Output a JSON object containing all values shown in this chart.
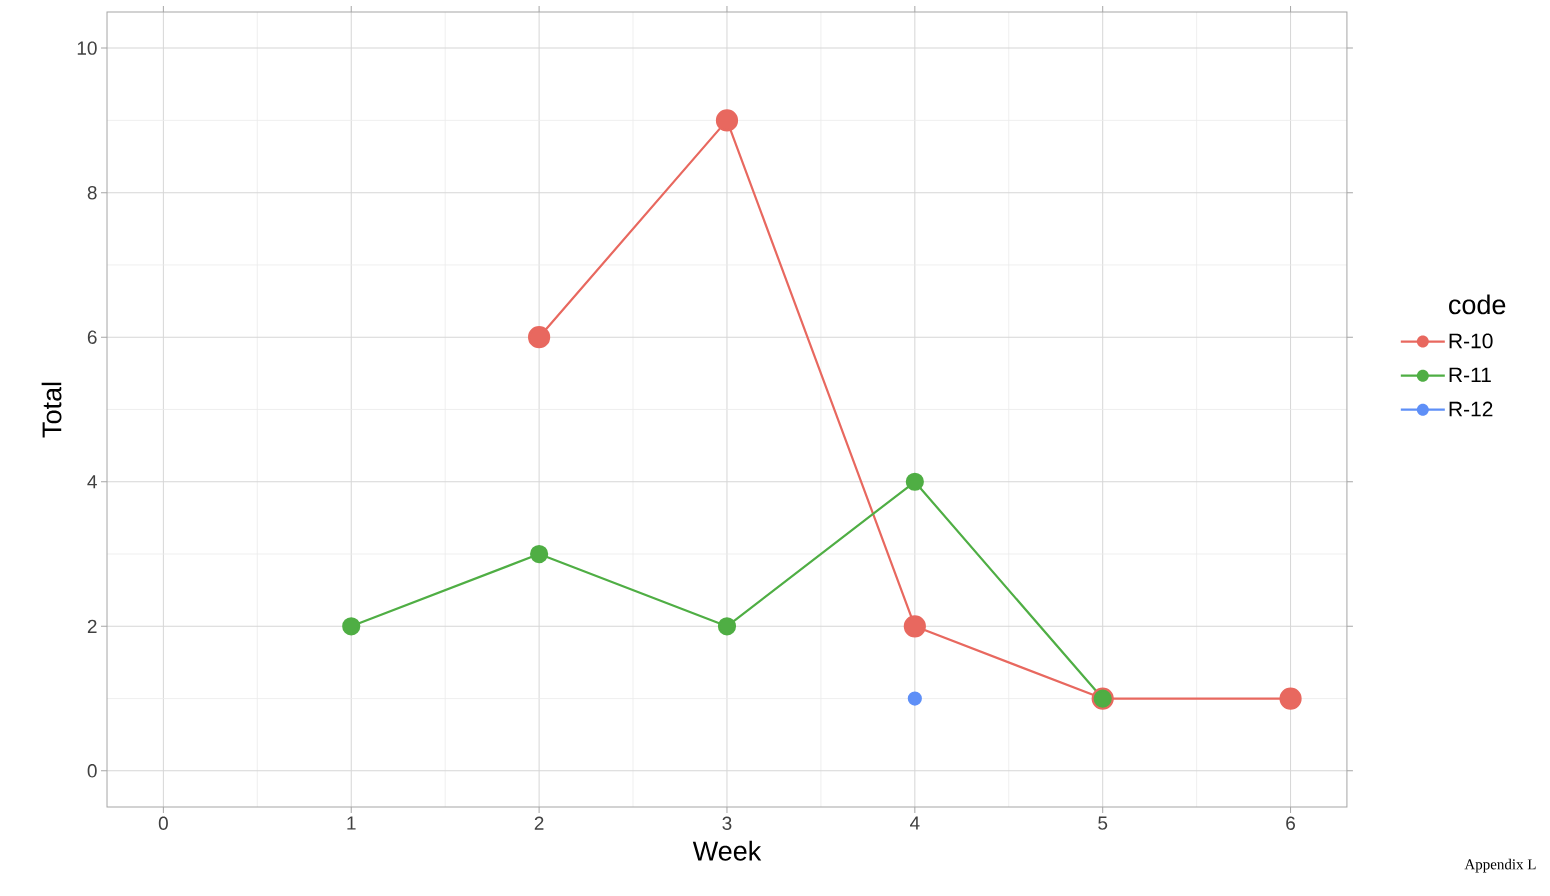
{
  "chart_data": {
    "type": "line",
    "xlabel": "Week",
    "ylabel": "Total",
    "legend_title": "code",
    "xlim": [
      -0.3,
      6.3
    ],
    "ylim": [
      -0.5,
      10.5
    ],
    "xticks": [
      0,
      1,
      2,
      3,
      4,
      5,
      6
    ],
    "yticks": [
      0,
      2,
      4,
      6,
      8,
      10
    ],
    "grid": true,
    "legend": "right",
    "marker": "circle",
    "line_style": "solid",
    "annotations": [
      "Appendix L"
    ],
    "series": [
      {
        "name": "R-10",
        "color": "#e8685f",
        "x": [
          2,
          3,
          4,
          5,
          6
        ],
        "values": [
          6,
          9,
          2,
          1,
          1
        ]
      },
      {
        "name": "R-11",
        "color": "#4fae44",
        "x": [
          1,
          2,
          3,
          4,
          5
        ],
        "values": [
          2,
          3,
          2,
          4,
          1
        ]
      },
      {
        "name": "R-12",
        "color": "#5e8ff7",
        "x": [
          4
        ],
        "values": [
          1
        ]
      }
    ]
  }
}
